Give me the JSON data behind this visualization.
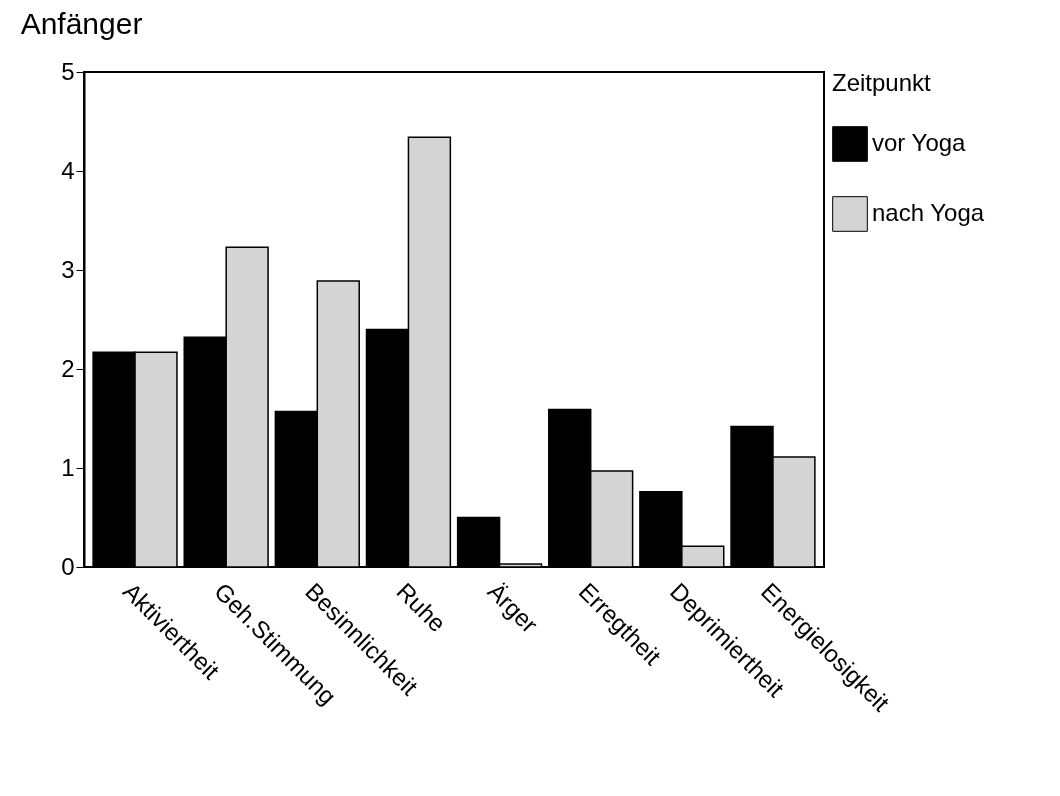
{
  "chart_data": {
    "type": "bar",
    "title": "Anfänger",
    "legend_title": "Zeitpunkt",
    "legend": "right",
    "grid": false,
    "categories": [
      "Aktiviertheit",
      "Geh.Stimmung",
      "Besinnlichkeit",
      "Ruhe",
      "Ärger",
      "Erregtheit",
      "Deprimiertheit",
      "Energielosigkeit"
    ],
    "series": [
      {
        "name": "vor Yoga",
        "color": "#000000",
        "values": [
          2.17,
          2.32,
          1.57,
          2.4,
          0.5,
          1.59,
          0.76,
          1.42
        ]
      },
      {
        "name": "nach Yoga",
        "color": "#d4d4d4",
        "values": [
          2.17,
          3.23,
          2.89,
          4.34,
          0.03,
          0.97,
          0.21,
          1.11
        ]
      }
    ],
    "ylim": [
      0,
      5
    ],
    "yticks": [
      0,
      1,
      2,
      3,
      4,
      5
    ]
  }
}
